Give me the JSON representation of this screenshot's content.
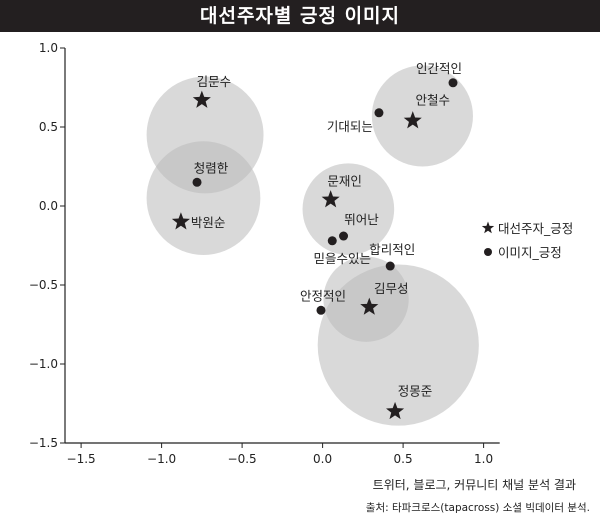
{
  "title": "대선주자별 긍정 이미지",
  "caption": "트위터, 블로그, 커뮤니티 채널 분석 결과",
  "source": "출처: 타파크로스(tapacross) 소셜 빅데이터 분석.",
  "colors": {
    "title_bg": "#231f20",
    "circle": "#b9b9b9",
    "marker": "#231f20",
    "axis": "#222222"
  },
  "chart_data": {
    "type": "scatter",
    "title": "대선주자별 긍정 이미지",
    "xlabel": "트위터, 블로그, 커뮤니티 채널 분석 결과",
    "ylabel": "",
    "xlim": [
      -1.6,
      1.1
    ],
    "ylim": [
      -1.5,
      1.0
    ],
    "x_ticks": [
      -1.5,
      -1.0,
      -0.5,
      0.0,
      0.5,
      1.0
    ],
    "x_tick_labels": [
      "−1.5",
      "−1.0",
      "−0.5",
      "0.0",
      "0.5",
      "1.0"
    ],
    "y_ticks": [
      1.0,
      0.5,
      0.0,
      -0.5,
      -1.0,
      -1.5
    ],
    "y_tick_labels": [
      "1.0",
      "0.5",
      "0.0",
      "−0.5",
      "−1.0",
      "−1.5"
    ],
    "legend": [
      {
        "name": "대선주자_긍정",
        "marker": "star"
      },
      {
        "name": "이미지_긍정",
        "marker": "dot"
      }
    ],
    "candidates": [
      {
        "name": "김문수",
        "x": -0.75,
        "y": 0.67
      },
      {
        "name": "박원순",
        "x": -0.88,
        "y": -0.1
      },
      {
        "name": "안철수",
        "x": 0.56,
        "y": 0.54
      },
      {
        "name": "문재인",
        "x": 0.05,
        "y": 0.04
      },
      {
        "name": "김무성",
        "x": 0.29,
        "y": -0.64
      },
      {
        "name": "정몽준",
        "x": 0.45,
        "y": -1.3
      }
    ],
    "images": [
      {
        "name": "인간적인",
        "x": 0.81,
        "y": 0.78
      },
      {
        "name": "기대되는",
        "x": 0.35,
        "y": 0.59
      },
      {
        "name": "청렴한",
        "x": -0.78,
        "y": 0.15
      },
      {
        "name": "뛰어난",
        "x": 0.13,
        "y": -0.19
      },
      {
        "name": "믿을수있는",
        "x": 0.06,
        "y": -0.22
      },
      {
        "name": "합리적인",
        "x": 0.42,
        "y": -0.38
      },
      {
        "name": "안정적인",
        "x": -0.01,
        "y": -0.66
      }
    ],
    "clusters": [
      {
        "x": -0.73,
        "y": 0.45,
        "r": 0.37
      },
      {
        "x": -0.74,
        "y": 0.05,
        "r": 0.36
      },
      {
        "x": 0.62,
        "y": 0.57,
        "r": 0.32
      },
      {
        "x": 0.16,
        "y": -0.02,
        "r": 0.29
      },
      {
        "x": 0.27,
        "y": -0.59,
        "r": 0.27
      },
      {
        "x": 0.47,
        "y": -0.88,
        "r": 0.51
      }
    ]
  }
}
